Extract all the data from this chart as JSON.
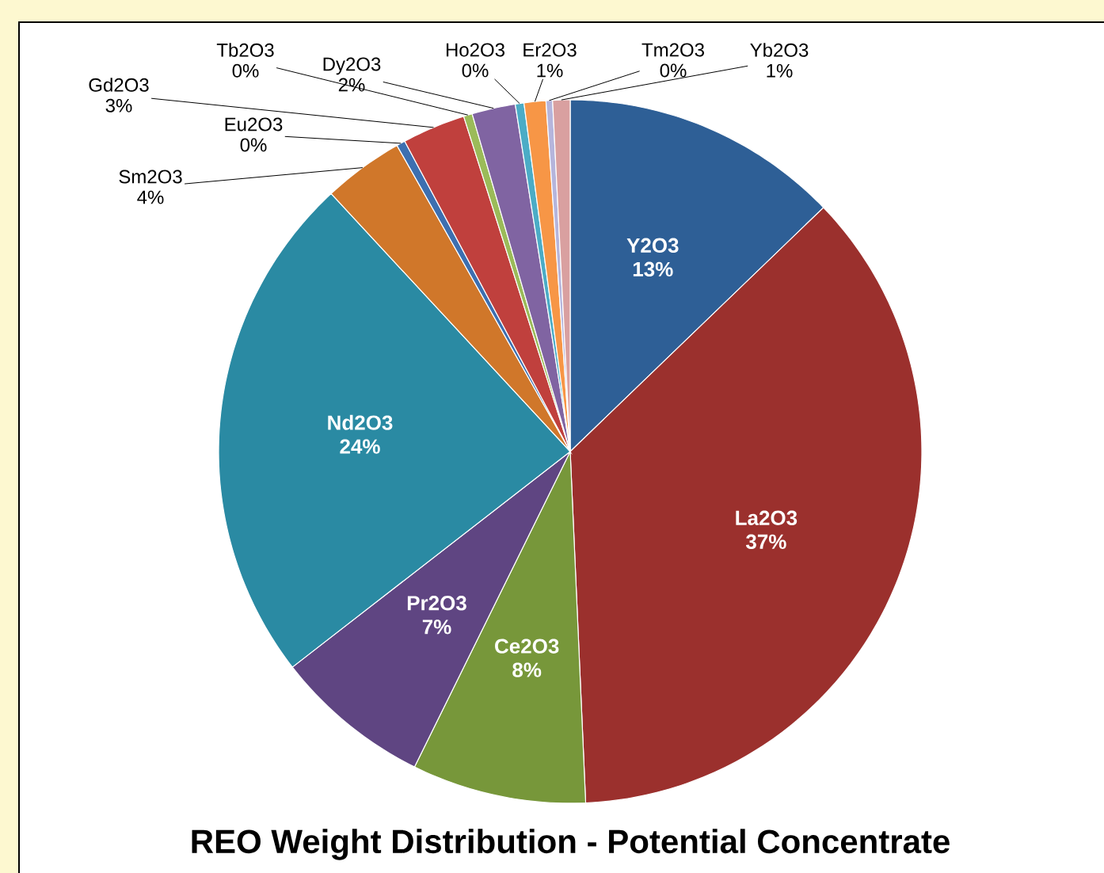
{
  "chart_data": {
    "type": "pie",
    "title": "REO Weight Distribution - Potential Concentrate",
    "categories": [
      "Y2O3",
      "La2O3",
      "Ce2O3",
      "Pr2O3",
      "Nd2O3",
      "Sm2O3",
      "Eu2O3",
      "Gd2O3",
      "Tb2O3",
      "Dy2O3",
      "Ho2O3",
      "Er2O3",
      "Tm2O3",
      "Yb2O3"
    ],
    "values": [
      12.8,
      36.5,
      8,
      7.2,
      23.6,
      3.7,
      0.4,
      2.9,
      0.4,
      2.0,
      0.4,
      1.0,
      0.3,
      0.8
    ],
    "value_labels": [
      "13%",
      "37%",
      "8%",
      "7%",
      "24%",
      "4%",
      "0%",
      "3%",
      "0%",
      "2%",
      "0%",
      "1%",
      "0%",
      "1%"
    ],
    "colors": [
      "#2e5f96",
      "#9b302d",
      "#77973a",
      "#5f4582",
      "#2a8aa3",
      "#d0772a",
      "#3d6fb0",
      "#c0403d",
      "#9bbb59",
      "#8064a2",
      "#4bacc6",
      "#f79646",
      "#b5b5dc",
      "#d9a0a0"
    ]
  }
}
